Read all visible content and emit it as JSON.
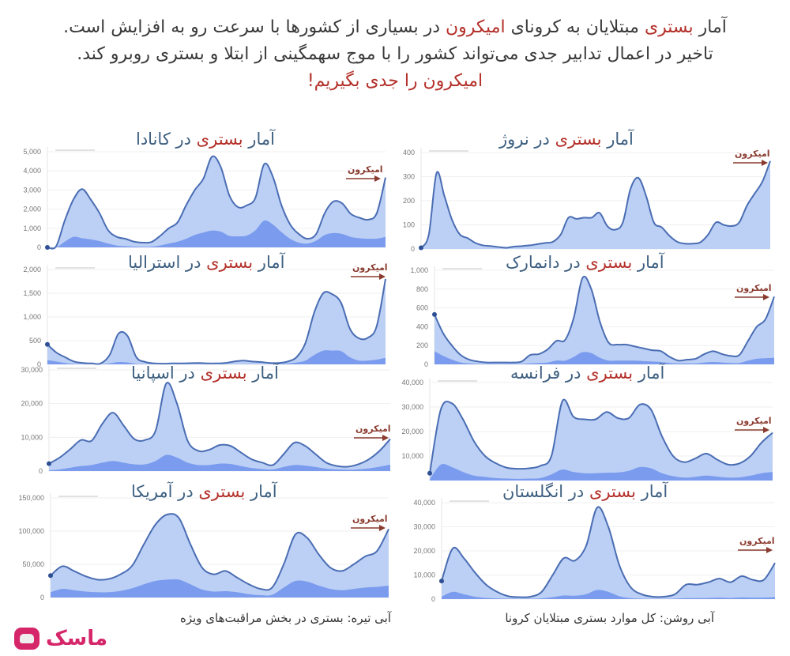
{
  "headline": {
    "line1_pre": "آمار ",
    "line1_hl1": "بستری",
    "line1_mid": " مبتلایان به کرونای ",
    "line1_hl2": "امیکرون",
    "line1_post": " در بسیاری از کشورها با سرعت رو به افزایش است.",
    "line2": "تاخیر در اعمال تدابیر جدی می‌تواند کشور را با موج سهمگینی از ابتلا و بستری روبرو کند.",
    "line3": "امیکرون را جدی بگیریم!"
  },
  "title_prefix": "آمار ",
  "title_hl": "بستری",
  "omicron_label": "امیکرون",
  "colors": {
    "light_fill": "#bcd0f5",
    "dark_fill": "#7b9cee",
    "line": "#4a6db3",
    "title": "#3d5f80",
    "highlight": "#b4302a",
    "omicron": "#8a3a2e",
    "logo": "#d6266a"
  },
  "legend": {
    "light": "آبی روشن: کل موارد بستری مبتلایان کرونا",
    "dark": "آبی تیره: بستری در بخش مراقبت‌های ویژه"
  },
  "logo": {
    "text": "ماسک"
  },
  "chart_data": [
    {
      "type": "area",
      "id": "canada",
      "title": "آمار بستری در کانادا",
      "country_suffix": " در کانادا",
      "yticks": [
        "0",
        "1,000",
        "2,000",
        "3,000",
        "4,000",
        "5,000"
      ],
      "ylim": [
        0,
        5000
      ],
      "series": [
        {
          "name": "total",
          "values": [
            0,
            50,
            1400,
            2500,
            3050,
            2500,
            1800,
            900,
            550,
            450,
            300,
            250,
            280,
            600,
            1000,
            1300,
            2200,
            3000,
            3600,
            4750,
            4200,
            2700,
            2100,
            2200,
            2600,
            4350,
            3700,
            2200,
            1200,
            700,
            450,
            700,
            1800,
            2400,
            2300,
            1750,
            1550,
            1450,
            1800,
            3650
          ]
        },
        {
          "name": "icu",
          "values": [
            0,
            0,
            300,
            550,
            480,
            420,
            330,
            200,
            100,
            60,
            40,
            30,
            40,
            100,
            200,
            300,
            450,
            650,
            780,
            880,
            820,
            600,
            580,
            620,
            900,
            1400,
            1200,
            800,
            450,
            250,
            200,
            350,
            650,
            750,
            700,
            550,
            480,
            450,
            460,
            550
          ]
        }
      ],
      "omicron_annotation": true
    },
    {
      "type": "area",
      "id": "norway",
      "title": "آمار بستری در نروژ",
      "country_suffix": " در نروژ",
      "yticks": [
        "0",
        "100",
        "200",
        "300",
        "400"
      ],
      "ylim": [
        0,
        400
      ],
      "series": [
        {
          "name": "total",
          "values": [
            5,
            60,
            315,
            220,
            120,
            60,
            45,
            25,
            15,
            12,
            8,
            5,
            10,
            12,
            15,
            20,
            25,
            30,
            60,
            130,
            125,
            130,
            130,
            150,
            95,
            80,
            110,
            250,
            295,
            220,
            110,
            90,
            55,
            30,
            22,
            22,
            28,
            60,
            110,
            100,
            95,
            110,
            180,
            230,
            280,
            365
          ]
        }
      ],
      "omicron_annotation": true
    },
    {
      "type": "area",
      "id": "australia",
      "title": "آمار بستری در استرالیا",
      "country_suffix": " در استرالیا",
      "yticks": [
        "0",
        "500",
        "1,000",
        "1,500",
        "2,000"
      ],
      "ylim": [
        0,
        2000
      ],
      "series": [
        {
          "name": "total",
          "values": [
            420,
            250,
            150,
            60,
            30,
            20,
            20,
            200,
            650,
            600,
            150,
            50,
            20,
            15,
            20,
            20,
            25,
            30,
            20,
            20,
            30,
            60,
            80,
            60,
            50,
            30,
            30,
            60,
            150,
            450,
            1100,
            1500,
            1480,
            1300,
            750,
            550,
            560,
            800,
            1800
          ]
        },
        {
          "name": "icu",
          "values": [
            90,
            60,
            30,
            10,
            5,
            5,
            5,
            20,
            50,
            40,
            10,
            5,
            5,
            5,
            5,
            5,
            5,
            5,
            5,
            5,
            5,
            5,
            5,
            5,
            5,
            5,
            10,
            20,
            40,
            80,
            200,
            290,
            290,
            280,
            150,
            80,
            80,
            100,
            140
          ]
        }
      ],
      "omicron_annotation": true
    },
    {
      "type": "area",
      "id": "denmark",
      "title": "آمار بستری در دانمارک",
      "country_suffix": " در دانمارک",
      "yticks": [
        "0",
        "200",
        "400",
        "600",
        "800",
        "1,000"
      ],
      "ylim": [
        0,
        1000
      ],
      "series": [
        {
          "name": "total",
          "values": [
            530,
            330,
            200,
            100,
            50,
            30,
            20,
            20,
            20,
            20,
            30,
            100,
            110,
            160,
            250,
            260,
            500,
            920,
            800,
            450,
            230,
            210,
            210,
            190,
            170,
            150,
            140,
            80,
            40,
            50,
            60,
            110,
            140,
            110,
            90,
            100,
            250,
            400,
            480,
            720
          ]
        },
        {
          "name": "icu",
          "values": [
            140,
            90,
            50,
            20,
            10,
            5,
            5,
            5,
            5,
            5,
            5,
            10,
            15,
            20,
            40,
            40,
            80,
            130,
            120,
            70,
            40,
            40,
            40,
            40,
            35,
            30,
            25,
            15,
            10,
            10,
            10,
            20,
            25,
            20,
            15,
            15,
            40,
            60,
            65,
            70
          ]
        }
      ],
      "omicron_annotation": true
    },
    {
      "type": "area",
      "id": "spain",
      "title": "آمار بستری در اسپانیا",
      "country_suffix": " در اسپانیا",
      "yticks": [
        "0",
        "10,000",
        "20,000",
        "30,000"
      ],
      "ylim": [
        0,
        30000
      ],
      "series": [
        {
          "name": "total",
          "values": [
            2200,
            4000,
            6500,
            9200,
            9000,
            14000,
            17300,
            13500,
            9500,
            9200,
            12000,
            26000,
            20000,
            9000,
            6000,
            6300,
            7700,
            7500,
            5500,
            3500,
            2500,
            1800,
            5000,
            8400,
            7500,
            5000,
            2500,
            1500,
            1300,
            2000,
            3500,
            6000,
            9500
          ]
        },
        {
          "name": "icu",
          "values": [
            200,
            500,
            1000,
            1500,
            1800,
            2500,
            3000,
            2500,
            2000,
            2000,
            3000,
            4800,
            4000,
            2500,
            1800,
            1800,
            2200,
            2100,
            1500,
            900,
            600,
            500,
            1200,
            1800,
            1600,
            1200,
            700,
            500,
            400,
            500,
            800,
            1300,
            1900
          ]
        }
      ],
      "omicron_annotation": true
    },
    {
      "type": "area",
      "id": "france",
      "title": "آمار بستری در فرانسه",
      "country_suffix": " در فرانسه",
      "yticks": [
        "10,000",
        "20,000",
        "30,000",
        "40,000"
      ],
      "ylim": [
        0,
        40000
      ],
      "series": [
        {
          "name": "total",
          "values": [
            3000,
            29000,
            31500,
            25000,
            16000,
            10000,
            7000,
            5200,
            4800,
            5000,
            6000,
            10000,
            32500,
            26000,
            25000,
            25000,
            28000,
            25500,
            25500,
            31000,
            29000,
            18000,
            10000,
            7500,
            9000,
            11000,
            8500,
            6500,
            7000,
            10000,
            15500,
            19500
          ]
        },
        {
          "name": "icu",
          "values": [
            500,
            6500,
            5500,
            3500,
            2000,
            1500,
            1000,
            800,
            700,
            800,
            1000,
            2500,
            4500,
            3500,
            3000,
            3000,
            3200,
            3300,
            4000,
            5500,
            5000,
            3000,
            1800,
            1200,
            1500,
            2000,
            1600,
            1200,
            1300,
            2000,
            3000,
            3500
          ]
        }
      ],
      "omicron_annotation": true
    },
    {
      "type": "area",
      "id": "usa",
      "title": "آمار بستری در آمریکا",
      "country_suffix": " در آمریکا",
      "yticks": [
        "0",
        "50,000",
        "100,000",
        "150,000"
      ],
      "ylim": [
        0,
        150000
      ],
      "series": [
        {
          "name": "total",
          "values": [
            33000,
            47000,
            40000,
            32000,
            27000,
            28000,
            35000,
            48000,
            80000,
            110000,
            125000,
            120000,
            80000,
            45000,
            35000,
            40000,
            30000,
            20000,
            13000,
            15000,
            50000,
            95000,
            90000,
            65000,
            45000,
            40000,
            50000,
            62000,
            70000,
            103000
          ]
        },
        {
          "name": "icu",
          "values": [
            8000,
            13000,
            11000,
            9000,
            8000,
            8000,
            10000,
            14000,
            20000,
            25000,
            27000,
            27000,
            20000,
            12000,
            9000,
            9500,
            8000,
            5000,
            3500,
            4000,
            15000,
            25000,
            24000,
            18000,
            13000,
            11000,
            13000,
            15000,
            16000,
            18000
          ]
        }
      ],
      "omicron_annotation": true
    },
    {
      "type": "area",
      "id": "uk",
      "title": "آمار بستری در انگلستان",
      "country_suffix": " در انگلستان",
      "yticks": [
        "0",
        "10,000",
        "20,000",
        "30,000",
        "40,000"
      ],
      "ylim": [
        0,
        40000
      ],
      "series": [
        {
          "name": "total",
          "values": [
            7500,
            21000,
            17000,
            11000,
            6000,
            3000,
            1200,
            800,
            1000,
            3000,
            10000,
            17000,
            16000,
            22000,
            38000,
            30000,
            14000,
            5000,
            2000,
            1000,
            1000,
            2000,
            6000,
            6000,
            7000,
            8500,
            7000,
            9500,
            8000,
            8000,
            15000
          ]
        },
        {
          "name": "icu",
          "values": [
            1000,
            3000,
            2000,
            1000,
            500,
            300,
            150,
            100,
            150,
            300,
            800,
            1500,
            1400,
            2000,
            3800,
            3000,
            1200,
            400,
            200,
            100,
            100,
            200,
            400,
            400,
            500,
            600,
            500,
            700,
            600,
            600,
            800
          ]
        }
      ],
      "omicron_annotation": true
    }
  ]
}
